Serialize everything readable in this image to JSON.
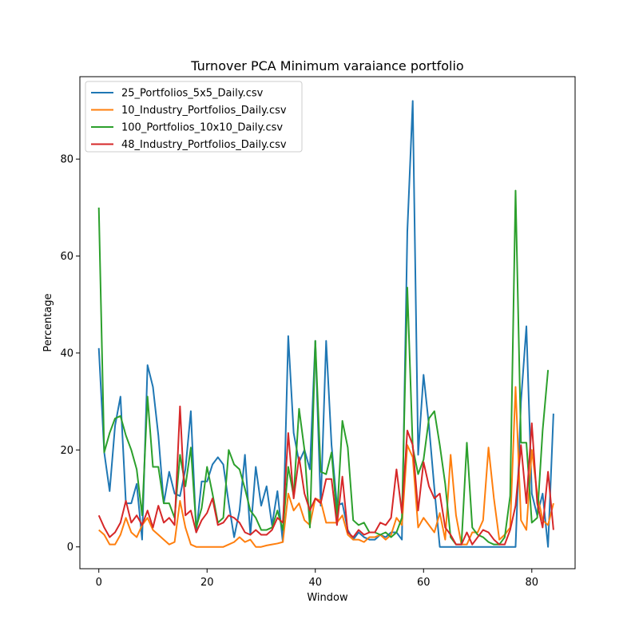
{
  "chart_data": {
    "type": "line",
    "title": "Turnover PCA Minimum varaiance portfolio",
    "xlabel": "Window",
    "ylabel": "Percentage",
    "xlim": [
      -3.5,
      88
    ],
    "ylim": [
      -4.5,
      97
    ],
    "xticks": [
      0,
      20,
      40,
      60,
      80
    ],
    "yticks": [
      0,
      20,
      40,
      60,
      80
    ],
    "grid": false,
    "legend_position": "top-left",
    "series": [
      {
        "name": "25_Portfolios_5x5_Daily.csv",
        "color": "#1f77b4",
        "values": [
          41,
          19.5,
          11.5,
          25,
          31,
          9,
          9,
          13,
          1.5,
          37.5,
          33,
          23,
          9,
          15.5,
          11,
          10.5,
          16,
          28,
          3,
          13.5,
          13.5,
          17,
          18.5,
          17,
          9,
          2,
          7.5,
          19,
          2.5,
          16.5,
          8.5,
          12.5,
          4.5,
          11.5,
          1,
          43.5,
          23.5,
          17.5,
          20,
          16,
          42.5,
          8.5,
          42.5,
          21,
          8.5,
          9,
          3.5,
          1.5,
          3,
          2,
          1.5,
          1.5,
          2.5,
          2,
          3,
          3,
          1.5,
          65,
          92,
          19,
          35.5,
          25,
          12,
          0,
          0,
          0,
          0,
          0,
          0,
          0,
          0,
          0,
          0,
          0,
          0,
          0,
          0,
          0,
          30,
          45.5,
          11,
          6.5,
          11,
          0,
          27.5
        ]
      },
      {
        "name": "10_Industry_Portfolios_Daily.csv",
        "color": "#ff7f0e",
        "values": [
          3.5,
          2.5,
          0.5,
          0.5,
          2.5,
          6,
          3,
          2,
          4.5,
          6,
          3.5,
          2.5,
          1.5,
          0.5,
          1,
          9.5,
          4,
          0.5,
          0,
          0,
          0,
          0,
          0,
          0,
          0.5,
          1,
          2,
          1,
          1.5,
          0,
          0,
          0.3,
          0.5,
          0.7,
          1,
          11,
          7.5,
          9,
          5.5,
          4.5,
          10,
          9.5,
          5,
          5,
          5,
          6.5,
          2.5,
          1.5,
          1.5,
          1,
          2,
          2,
          2.5,
          1.5,
          2.5,
          6,
          4.5,
          21,
          18.5,
          4,
          6,
          4.5,
          3,
          7,
          1.5,
          19,
          6.5,
          0.5,
          0.5,
          3,
          3,
          5.5,
          20.5,
          10,
          1.5,
          2.5,
          4,
          33,
          5.5,
          3.5,
          20,
          11,
          5.5,
          4.5,
          9
        ]
      },
      {
        "name": "100_Portfolios_10x10_Daily.csv",
        "color": "#2ca02c",
        "values": [
          70,
          19.5,
          23.5,
          26.5,
          27,
          23,
          20,
          16,
          6.5,
          31,
          16.5,
          16.5,
          9,
          9,
          6,
          19,
          12.5,
          20.5,
          4,
          8,
          16.5,
          11,
          5,
          6,
          20,
          17,
          16,
          12,
          7.5,
          6,
          3.5,
          3.5,
          4,
          7.5,
          3.5,
          16.5,
          10.5,
          28.5,
          20,
          4,
          42.5,
          15.5,
          15,
          19.5,
          6,
          26,
          20.5,
          5.5,
          4.5,
          5,
          3,
          3,
          2.5,
          3,
          2,
          3,
          6,
          53.5,
          20.5,
          15,
          18,
          26.5,
          28,
          21,
          13,
          2,
          0.5,
          0.5,
          21.5,
          4,
          2.5,
          2,
          1,
          0.5,
          0.5,
          2,
          10.5,
          73.5,
          21.5,
          21.5,
          5,
          6,
          24,
          36.5
        ]
      },
      {
        "name": "48_Industry_Portfolios_Daily.csv",
        "color": "#d62728",
        "values": [
          6.5,
          4,
          2,
          3,
          5,
          9.5,
          5,
          6.5,
          4.5,
          7.5,
          4,
          8.5,
          5,
          6,
          4.5,
          29,
          6.5,
          7.5,
          3,
          5.5,
          7,
          10,
          4.5,
          5,
          6.5,
          6,
          5,
          3,
          2.5,
          3.5,
          2.5,
          2.5,
          3.5,
          6,
          5,
          23.5,
          10,
          18.5,
          11,
          7.5,
          10,
          9,
          14,
          14,
          4.5,
          14.5,
          3,
          2,
          3.5,
          2.5,
          3,
          3,
          5,
          4.5,
          6,
          16,
          7,
          24,
          21,
          7.5,
          17.5,
          12.5,
          10,
          11,
          4,
          2.5,
          0.5,
          0.5,
          3,
          0.5,
          2,
          3.5,
          3,
          1.5,
          0.5,
          0.5,
          3.5,
          8.5,
          21,
          9,
          25.5,
          9,
          4,
          15.5,
          3.5
        ]
      }
    ]
  }
}
